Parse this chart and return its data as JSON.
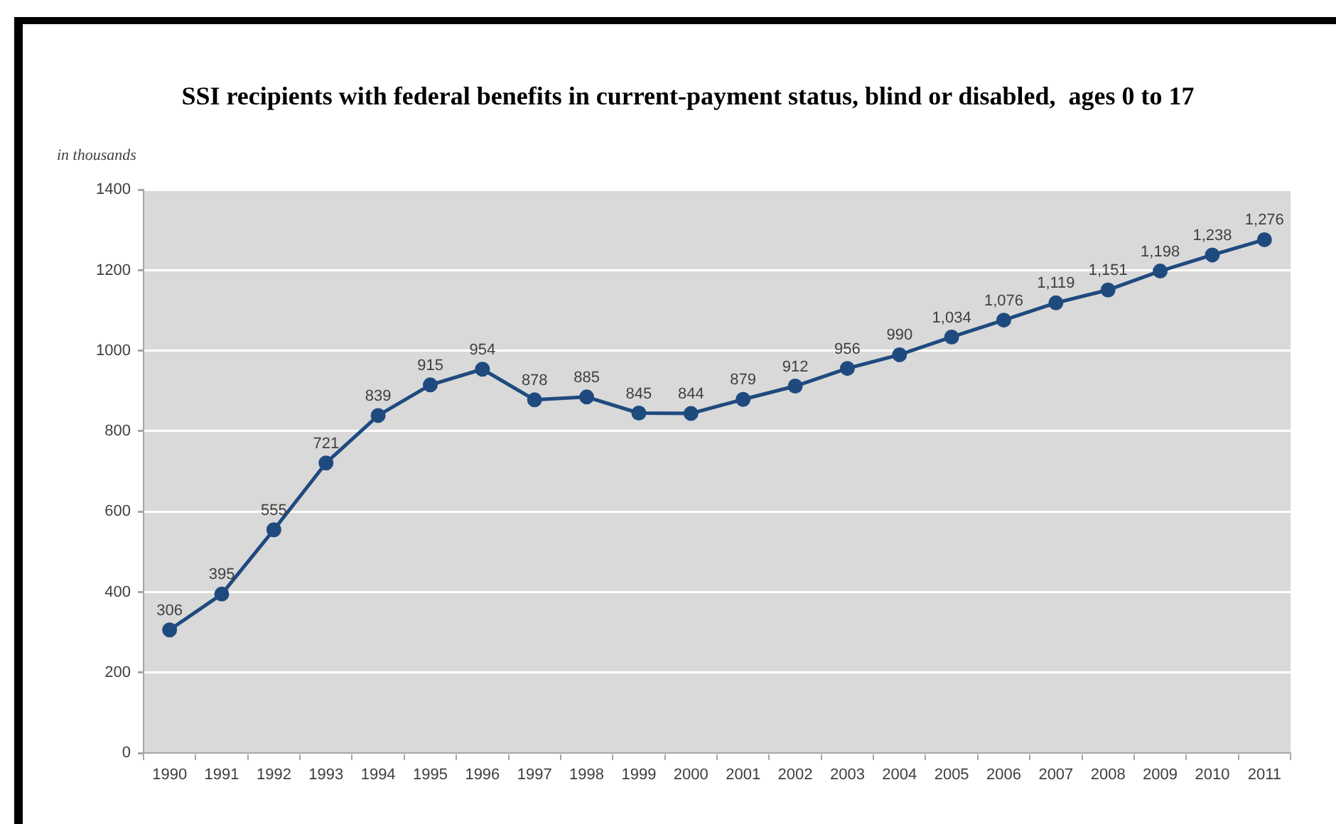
{
  "chart_data": {
    "type": "line",
    "title": "SSI recipients with federal benefits in current-payment status, blind or disabled,  ages 0 to 17",
    "ylabel": "in thousands",
    "categories": [
      "1990",
      "1991",
      "1992",
      "1993",
      "1994",
      "1995",
      "1996",
      "1997",
      "1998",
      "1999",
      "2000",
      "2001",
      "2002",
      "2003",
      "2004",
      "2005",
      "2006",
      "2007",
      "2008",
      "2009",
      "2010",
      "2011"
    ],
    "series": [
      {
        "color": "#1f4a7f",
        "values": [
          306,
          395,
          555,
          721,
          839,
          915,
          954,
          878,
          885,
          845,
          844,
          879,
          912,
          956,
          990,
          1034,
          1076,
          1119,
          1151,
          1198,
          1238,
          1276
        ],
        "value_labels": [
          "306",
          "395",
          "555",
          "721",
          "839",
          "915",
          "954",
          "878",
          "885",
          "845",
          "844",
          "879",
          "912",
          "956",
          "990",
          "1,034",
          "1,076",
          "1,119",
          "1,151",
          "1,198",
          "1,238",
          "1,276"
        ]
      }
    ],
    "ylim": [
      0,
      1400
    ],
    "yticks": [
      0,
      200,
      400,
      600,
      800,
      1000,
      1200,
      1400
    ],
    "grid": "y",
    "legend": false,
    "marker": "circle",
    "line_style": "solid"
  }
}
